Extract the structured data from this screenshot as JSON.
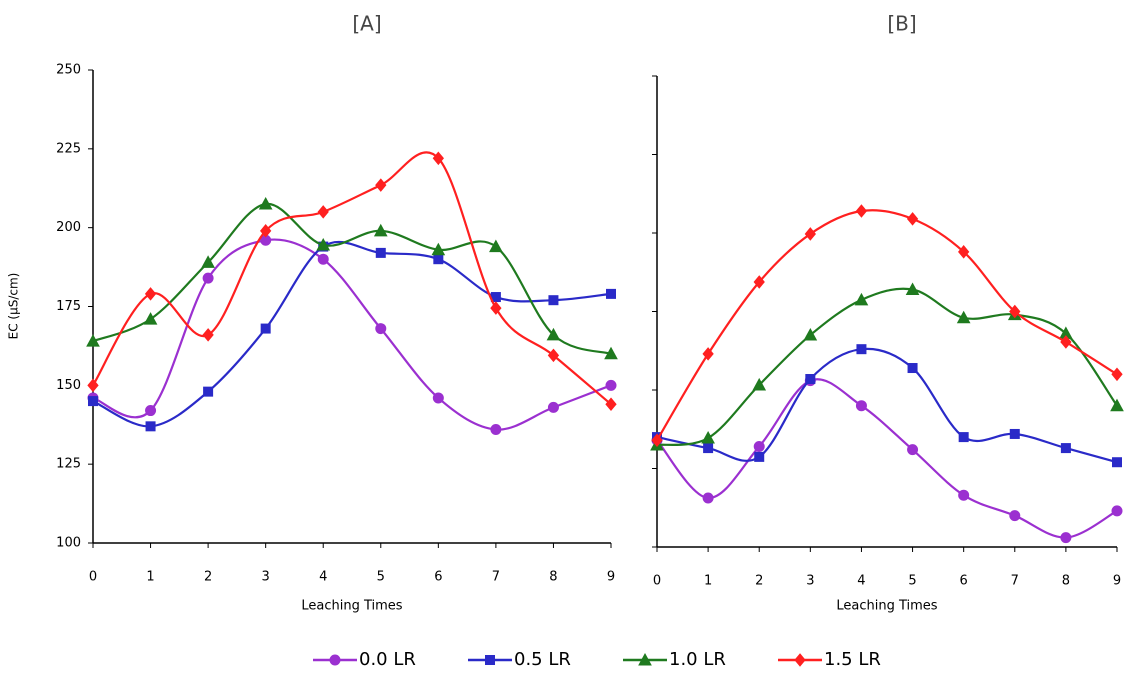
{
  "chart_data": [
    {
      "type": "line",
      "title": "[A]",
      "xlabel": "Leaching Times",
      "ylabel": "EC (µS/cm)",
      "x": [
        0,
        1,
        2,
        3,
        4,
        5,
        6,
        7,
        8,
        9
      ],
      "xlim": [
        0,
        9
      ],
      "xticks": [
        0,
        1,
        2,
        3,
        4,
        5,
        6,
        7,
        8,
        9
      ],
      "ylim": [
        100,
        250
      ],
      "yticks": [
        100,
        125,
        150,
        175,
        200,
        225,
        250
      ],
      "ytick_labels": true,
      "smooth": true,
      "series": [
        {
          "name": "0.0 LR",
          "color": "#9b30d0",
          "marker": "circle",
          "values": [
            146,
            142,
            184,
            196,
            190,
            168,
            146,
            136,
            143,
            150
          ]
        },
        {
          "name": "0.5 LR",
          "color": "#2a2ac8",
          "marker": "square",
          "values": [
            145,
            137,
            148,
            168,
            194,
            192,
            190,
            178,
            177,
            179
          ]
        },
        {
          "name": "1.0 LR",
          "color": "#1f7a1f",
          "marker": "triangle",
          "values": [
            164,
            171,
            189,
            207.5,
            194.5,
            199,
            193,
            194,
            166,
            160
          ]
        },
        {
          "name": "1.5 LR",
          "color": "#ff2020",
          "marker": "diamond",
          "values": [
            150,
            179,
            166,
            199,
            205,
            213.5,
            222,
            174.5,
            159.5,
            144
          ]
        }
      ]
    },
    {
      "type": "line",
      "title": "[B]",
      "xlabel": "Leaching Times",
      "x": [
        0,
        1,
        2,
        3,
        4,
        5,
        6,
        7,
        8,
        9
      ],
      "xlim": [
        0,
        9
      ],
      "xticks": [
        0,
        1,
        2,
        3,
        4,
        5,
        6,
        7,
        8,
        9
      ],
      "ylim": [
        100,
        250
      ],
      "yticks": [
        100,
        125,
        150,
        175,
        200,
        225,
        250
      ],
      "ytick_labels": false,
      "smooth": true,
      "series": [
        {
          "name": "0.0 LR",
          "color": "#9b30d0",
          "marker": "circle",
          "values": [
            134,
            115.6,
            132,
            153,
            145,
            131,
            116.5,
            110,
            103,
            111.5
          ]
        },
        {
          "name": "0.5 LR",
          "color": "#2a2ac8",
          "marker": "square",
          "values": [
            135,
            131.5,
            128.7,
            153.5,
            163,
            157,
            135,
            136,
            131.5,
            127
          ]
        },
        {
          "name": "1.0 LR",
          "color": "#1f7a1f",
          "marker": "triangle",
          "values": [
            132.5,
            134.7,
            151.6,
            167.5,
            178.7,
            182,
            173,
            174,
            168,
            145
          ]
        },
        {
          "name": "1.5 LR",
          "color": "#ff2020",
          "marker": "diamond",
          "values": [
            134,
            161.5,
            184.4,
            199.7,
            207,
            204.5,
            194,
            175,
            165.3,
            155
          ]
        }
      ]
    }
  ]
}
